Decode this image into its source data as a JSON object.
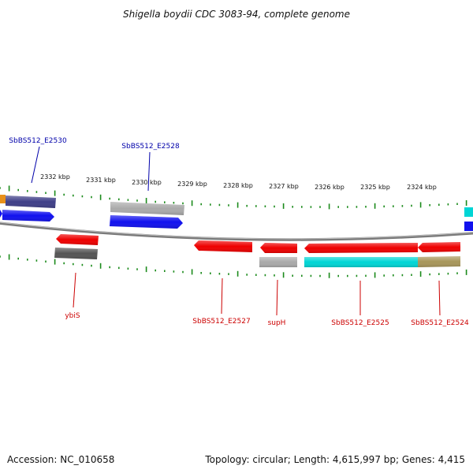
{
  "title": "Shigella boydii CDC 3083-94, complete genome",
  "accession": "Accession: NC_010658",
  "summary": "Topology: circular; Length: 4,615,997 bp; Genes: 4,415",
  "ticks": [
    "2332 kbp",
    "2331 kbp",
    "2330 kbp",
    "2329 kbp",
    "2328 kbp",
    "2327 kbp",
    "2326 kbp",
    "2325 kbp",
    "2324 kbp"
  ],
  "gene_labels": {
    "top": [
      "SbBS512_E2530",
      "SbBS512_E2528"
    ],
    "bottom": [
      "ybiS",
      "SbBS512_E2527",
      "supH",
      "SbBS512_E2525",
      "SbBS512_E2524"
    ]
  },
  "colors": {
    "top_label": "#0000aa",
    "bottom_label": "#cc0000",
    "tick": "#1a8a1a",
    "backbone": "#888888",
    "red": "#ee0000",
    "blue": "#1111ee",
    "gray": "#aaaaaa",
    "darkgray": "#555555",
    "purple": "#3f3f88",
    "cyan": "#00d5d5",
    "olive": "#a8965a",
    "orange": "#e8901a"
  }
}
